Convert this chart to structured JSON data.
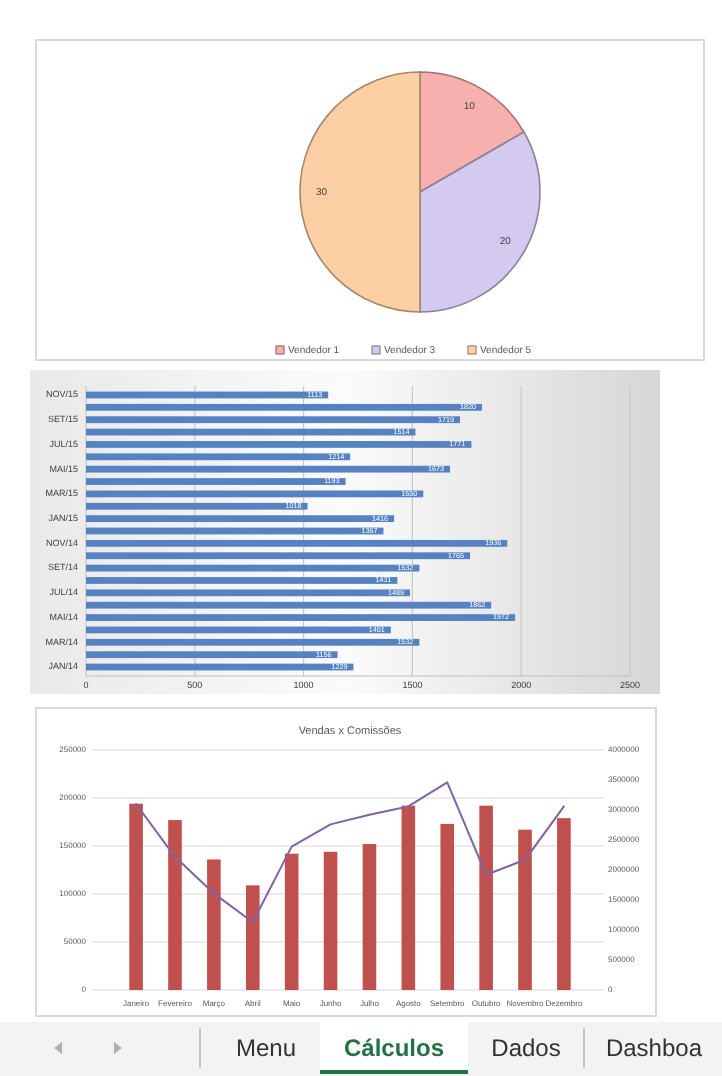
{
  "chart_data": [
    {
      "type": "pie",
      "categories": [
        "Vendedor 1",
        "Vendedor 3",
        "Vendedor 5"
      ],
      "values": [
        10,
        20,
        30
      ],
      "colors": [
        "#f6b0ae",
        "#d4c9ee",
        "#fdcfa4"
      ],
      "data_labels": true,
      "legend": "bottom"
    },
    {
      "type": "bar",
      "orientation": "horizontal",
      "categories": [
        "NOV/15",
        null,
        "SET/15",
        null,
        "JUL/15",
        null,
        "MAI/15",
        null,
        "MAR/15",
        null,
        "JAN/15",
        null,
        "NOV/14",
        null,
        "SET/14",
        null,
        "JUL/14",
        null,
        "MAI/14",
        null,
        "MAR/14",
        null,
        "JAN/14"
      ],
      "values": [
        1113,
        1820,
        1719,
        1514,
        1771,
        1214,
        1673,
        1193,
        1550,
        1018,
        1416,
        1367,
        1936,
        1765,
        1532,
        1431,
        1489,
        1862,
        1972,
        1401,
        1532,
        1156,
        1229
      ],
      "color": "#5682c2",
      "xlim": [
        0,
        2500
      ],
      "xticks": [
        0,
        500,
        1000,
        1500,
        2000,
        2500
      ],
      "grid": "x",
      "data_labels": true
    },
    {
      "type": "bar",
      "title": "Vendas x Comissões",
      "categories": [
        "Janeiro",
        "Fevereiro",
        "Março",
        "Abril",
        "Maio",
        "Junho",
        "Julho",
        "Agosto",
        "Setembro",
        "Outubro",
        "Novembro",
        "Dezembro"
      ],
      "series": [
        {
          "type": "bar",
          "color": "#c0504d",
          "values": [
            194000,
            177000,
            136000,
            109000,
            142000,
            144000,
            152000,
            192000,
            173000,
            192000,
            167000,
            179000
          ]
        },
        {
          "type": "line",
          "axis": "y2",
          "color": "#8064a2",
          "values": [
            3100000,
            2220000,
            1610000,
            1130000,
            2390000,
            2760000,
            2920000,
            3060000,
            3460000,
            1920000,
            2170000,
            3060000
          ]
        }
      ],
      "ylim": [
        0,
        250000
      ],
      "yticks": [
        0,
        50000,
        100000,
        150000,
        200000,
        250000
      ],
      "y2lim": [
        0,
        4000000
      ],
      "y2ticks": [
        0,
        500000,
        1000000,
        1500000,
        2000000,
        2500000,
        3000000,
        3500000,
        4000000
      ],
      "grid": "y",
      "marker": "none"
    },
    {
      "type": "other",
      "annotations": [
        "Menu",
        "Cálculos",
        "Dados",
        "Dashboa"
      ]
    }
  ]
}
